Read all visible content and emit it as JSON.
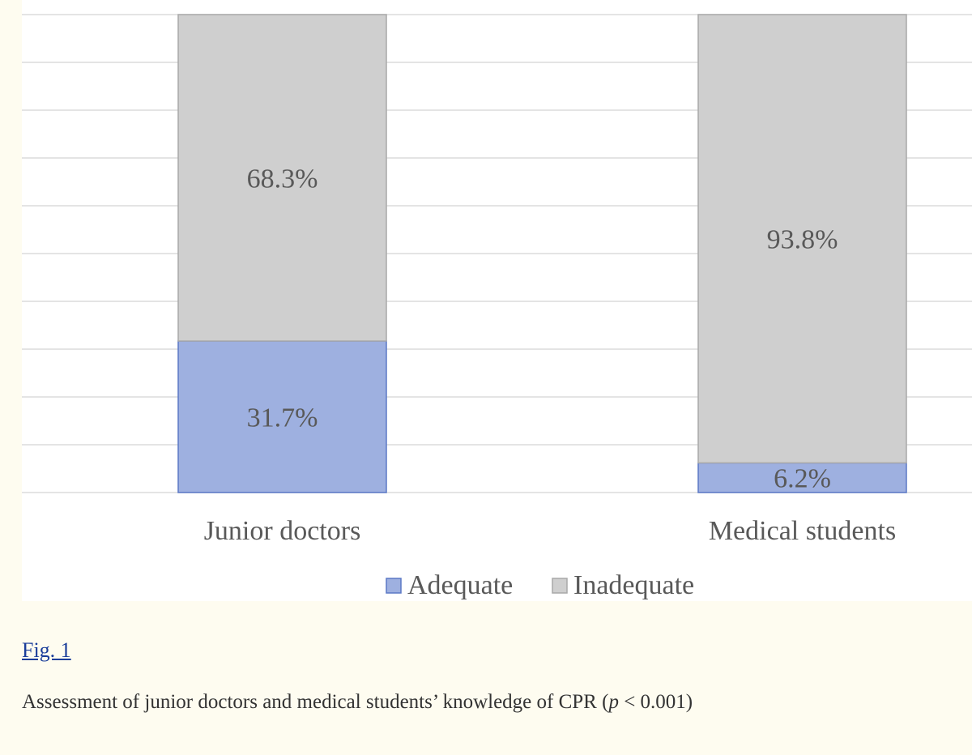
{
  "chart_data": {
    "type": "bar",
    "stacked": true,
    "percent_stacked": true,
    "categories": [
      "Junior doctors",
      "Medical students"
    ],
    "series": [
      {
        "name": "Adequate",
        "values": [
          31.7,
          6.2
        ],
        "labels": [
          "31.7%",
          "6.2%"
        ],
        "color": "#9eb0e0",
        "stroke": "#5b79c6"
      },
      {
        "name": "Inadequate",
        "values": [
          68.3,
          93.8
        ],
        "labels": [
          "68.3%",
          "93.8%"
        ],
        "color": "#cfcfcf",
        "stroke": "#a9a9a9"
      }
    ],
    "ylim": [
      0,
      100
    ],
    "grid": true,
    "legend_position": "bottom"
  },
  "figure": {
    "link_label": "Fig. 1",
    "caption_main": "Assessment of junior doctors and medical students’ knowledge of CPR (",
    "caption_var": "p",
    "caption_rest": " < 0.001)"
  },
  "colors": {
    "page_background": "#fefcf0",
    "panel_background": "#ffffff",
    "gridline": "#dcdcdc",
    "label_text": "#595959",
    "link": "#1a3d9a"
  }
}
